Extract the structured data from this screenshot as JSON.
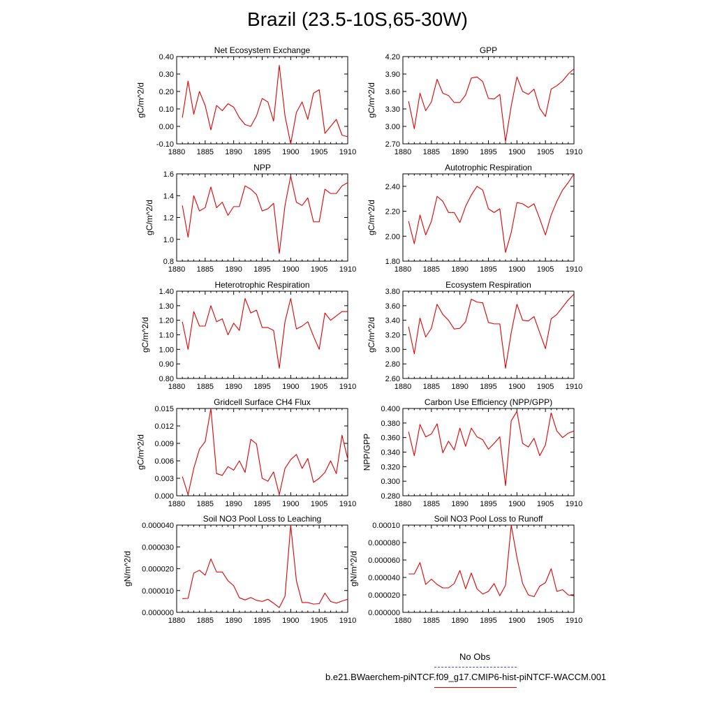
{
  "title": "Brazil (23.5-10S,65-30W)",
  "legend": {
    "obs_label": "No Obs",
    "obs_color": "#4b4bc8",
    "model_label": "b.e21.BWaerchem-piNTCF.f09_g17.CMIP6-hist-piNTCF-WACCM.001",
    "model_color": "#e00000"
  },
  "chart_data": [
    {
      "type": "line",
      "title": "Net Ecosystem Exchange",
      "ylabel": "gC/m^2/d",
      "xlim": [
        1880,
        1910
      ],
      "ylim": [
        -0.1,
        0.4
      ],
      "xticks": [
        1880,
        1885,
        1890,
        1895,
        1900,
        1905,
        1910
      ],
      "yticks": [
        "-0.10",
        "0.00",
        "0.10",
        "0.20",
        "0.30",
        "0.40"
      ],
      "x": [
        1881,
        1882,
        1883,
        1884,
        1885,
        1886,
        1887,
        1888,
        1889,
        1890,
        1891,
        1892,
        1893,
        1894,
        1895,
        1896,
        1897,
        1898,
        1899,
        1900,
        1901,
        1902,
        1903,
        1904,
        1905,
        1906,
        1907,
        1908,
        1909,
        1910
      ],
      "series": [
        {
          "values": [
            0.05,
            0.26,
            0.07,
            0.2,
            0.12,
            -0.02,
            0.12,
            0.09,
            0.13,
            0.11,
            0.05,
            0.01,
            0.0,
            0.06,
            0.16,
            0.14,
            0.03,
            0.35,
            0.06,
            -0.1,
            0.08,
            0.14,
            0.04,
            0.19,
            0.21,
            -0.04,
            0.0,
            0.04,
            -0.05,
            -0.06
          ]
        }
      ]
    },
    {
      "type": "line",
      "title": "GPP",
      "ylabel": "gC/m^2/d",
      "xlim": [
        1880,
        1910
      ],
      "ylim": [
        2.7,
        4.2
      ],
      "xticks": [
        1880,
        1885,
        1890,
        1895,
        1900,
        1905,
        1910
      ],
      "yticks": [
        "2.70",
        "3.00",
        "3.30",
        "3.60",
        "3.90",
        "4.20"
      ],
      "x": [
        1881,
        1882,
        1883,
        1884,
        1885,
        1886,
        1887,
        1888,
        1889,
        1890,
        1891,
        1892,
        1893,
        1894,
        1895,
        1896,
        1897,
        1898,
        1899,
        1900,
        1901,
        1902,
        1903,
        1904,
        1905,
        1906,
        1907,
        1908,
        1909,
        1910
      ],
      "series": [
        {
          "values": [
            3.43,
            2.96,
            3.57,
            3.27,
            3.42,
            3.81,
            3.57,
            3.53,
            3.41,
            3.41,
            3.54,
            3.83,
            3.85,
            3.77,
            3.48,
            3.47,
            3.55,
            2.74,
            3.35,
            3.85,
            3.6,
            3.55,
            3.64,
            3.31,
            3.17,
            3.64,
            3.7,
            3.78,
            3.9,
            3.99
          ]
        }
      ]
    },
    {
      "type": "line",
      "title": "NPP",
      "ylabel": "gC/m^2/d",
      "xlim": [
        1880,
        1910
      ],
      "ylim": [
        0.8,
        1.6
      ],
      "xticks": [
        1880,
        1885,
        1890,
        1895,
        1900,
        1905,
        1910
      ],
      "yticks": [
        "0.8",
        "1.0",
        "1.2",
        "1.4",
        "1.6"
      ],
      "x": [
        1881,
        1882,
        1883,
        1884,
        1885,
        1886,
        1887,
        1888,
        1889,
        1890,
        1891,
        1892,
        1893,
        1894,
        1895,
        1896,
        1897,
        1898,
        1899,
        1900,
        1901,
        1902,
        1903,
        1904,
        1905,
        1906,
        1907,
        1908,
        1909,
        1910
      ],
      "series": [
        {
          "values": [
            1.31,
            1.02,
            1.4,
            1.26,
            1.29,
            1.48,
            1.29,
            1.34,
            1.22,
            1.3,
            1.3,
            1.49,
            1.46,
            1.41,
            1.26,
            1.28,
            1.33,
            0.87,
            1.31,
            1.58,
            1.34,
            1.31,
            1.38,
            1.16,
            1.16,
            1.46,
            1.42,
            1.42,
            1.49,
            1.52
          ]
        }
      ]
    },
    {
      "type": "line",
      "title": "Autotrophic Respiration",
      "ylabel": "gC/m^2/d",
      "xlim": [
        1880,
        1910
      ],
      "ylim": [
        1.8,
        2.5
      ],
      "xticks": [
        1880,
        1885,
        1890,
        1895,
        1900,
        1905,
        1910
      ],
      "yticks": [
        "1.80",
        "2.00",
        "2.20",
        "2.40"
      ],
      "x": [
        1881,
        1882,
        1883,
        1884,
        1885,
        1886,
        1887,
        1888,
        1889,
        1890,
        1891,
        1892,
        1893,
        1894,
        1895,
        1896,
        1897,
        1898,
        1899,
        1900,
        1901,
        1902,
        1903,
        1904,
        1905,
        1906,
        1907,
        1908,
        1909,
        1910
      ],
      "series": [
        {
          "values": [
            2.12,
            1.94,
            2.17,
            2.01,
            2.12,
            2.32,
            2.28,
            2.19,
            2.19,
            2.11,
            2.24,
            2.33,
            2.4,
            2.37,
            2.22,
            2.19,
            2.22,
            1.87,
            2.03,
            2.27,
            2.26,
            2.23,
            2.26,
            2.14,
            2.01,
            2.17,
            2.28,
            2.37,
            2.43,
            2.5
          ]
        }
      ]
    },
    {
      "type": "line",
      "title": "Heterotrophic Respiration",
      "ylabel": "gC/m^2/d",
      "xlim": [
        1880,
        1910
      ],
      "ylim": [
        0.8,
        1.4
      ],
      "xticks": [
        1880,
        1885,
        1890,
        1895,
        1900,
        1905,
        1910
      ],
      "yticks": [
        "0.80",
        "0.90",
        "1.00",
        "1.10",
        "1.20",
        "1.30",
        "1.40"
      ],
      "x": [
        1881,
        1882,
        1883,
        1884,
        1885,
        1886,
        1887,
        1888,
        1889,
        1890,
        1891,
        1892,
        1893,
        1894,
        1895,
        1896,
        1897,
        1898,
        1899,
        1900,
        1901,
        1902,
        1903,
        1904,
        1905,
        1906,
        1907,
        1908,
        1909,
        1910
      ],
      "series": [
        {
          "values": [
            1.19,
            1.0,
            1.26,
            1.16,
            1.16,
            1.3,
            1.19,
            1.21,
            1.1,
            1.18,
            1.13,
            1.35,
            1.25,
            1.27,
            1.15,
            1.15,
            1.13,
            0.87,
            1.19,
            1.35,
            1.14,
            1.16,
            1.19,
            1.09,
            1.0,
            1.25,
            1.2,
            1.23,
            1.26,
            1.26
          ]
        }
      ]
    },
    {
      "type": "line",
      "title": "Ecosystem Respiration",
      "ylabel": "gC/m^2/d",
      "xlim": [
        1880,
        1910
      ],
      "ylim": [
        2.6,
        3.8
      ],
      "xticks": [
        1880,
        1885,
        1890,
        1895,
        1900,
        1905,
        1910
      ],
      "yticks": [
        "2.60",
        "2.80",
        "3.00",
        "3.20",
        "3.40",
        "3.60",
        "3.80"
      ],
      "x": [
        1881,
        1882,
        1883,
        1884,
        1885,
        1886,
        1887,
        1888,
        1889,
        1890,
        1891,
        1892,
        1893,
        1894,
        1895,
        1896,
        1897,
        1898,
        1899,
        1900,
        1901,
        1902,
        1903,
        1904,
        1905,
        1906,
        1907,
        1908,
        1909,
        1910
      ],
      "series": [
        {
          "values": [
            3.31,
            2.94,
            3.43,
            3.17,
            3.29,
            3.62,
            3.48,
            3.4,
            3.28,
            3.29,
            3.38,
            3.69,
            3.65,
            3.64,
            3.37,
            3.35,
            3.35,
            2.74,
            3.23,
            3.62,
            3.4,
            3.39,
            3.45,
            3.23,
            3.01,
            3.42,
            3.48,
            3.58,
            3.68,
            3.76
          ]
        }
      ]
    },
    {
      "type": "line",
      "title": "Gridcell Surface CH4 Flux",
      "ylabel": "gC/m^2/d",
      "xlim": [
        1880,
        1910
      ],
      "ylim": [
        0.0,
        0.015
      ],
      "xticks": [
        1880,
        1885,
        1890,
        1895,
        1900,
        1905,
        1910
      ],
      "yticks": [
        "0.000",
        "0.003",
        "0.006",
        "0.009",
        "0.012",
        "0.015"
      ],
      "x": [
        1881,
        1882,
        1883,
        1884,
        1885,
        1886,
        1887,
        1888,
        1889,
        1890,
        1891,
        1892,
        1893,
        1894,
        1895,
        1896,
        1897,
        1898,
        1899,
        1900,
        1901,
        1902,
        1903,
        1904,
        1905,
        1906,
        1907,
        1908,
        1909,
        1910
      ],
      "series": [
        {
          "values": [
            0.0033,
            0.0002,
            0.0047,
            0.008,
            0.0093,
            0.015,
            0.0038,
            0.0035,
            0.005,
            0.0044,
            0.006,
            0.004,
            0.0097,
            0.0089,
            0.003,
            0.0025,
            0.0041,
            0.0002,
            0.0047,
            0.0062,
            0.0071,
            0.0047,
            0.0064,
            0.0023,
            0.003,
            0.004,
            0.006,
            0.0038,
            0.0104,
            0.0063
          ]
        }
      ]
    },
    {
      "type": "line",
      "title": "Carbon Use Efficiency (NPP/GPP)",
      "ylabel": "NPP/GPP",
      "xlim": [
        1880,
        1910
      ],
      "ylim": [
        0.28,
        0.4
      ],
      "xticks": [
        1880,
        1885,
        1890,
        1895,
        1900,
        1905,
        1910
      ],
      "yticks": [
        "0.280",
        "0.300",
        "0.320",
        "0.340",
        "0.360",
        "0.380",
        "0.400"
      ],
      "x": [
        1881,
        1882,
        1883,
        1884,
        1885,
        1886,
        1887,
        1888,
        1889,
        1890,
        1891,
        1892,
        1893,
        1894,
        1895,
        1896,
        1897,
        1898,
        1899,
        1900,
        1901,
        1902,
        1903,
        1904,
        1905,
        1906,
        1907,
        1908,
        1909,
        1910
      ],
      "series": [
        {
          "values": [
            0.368,
            0.335,
            0.378,
            0.361,
            0.365,
            0.379,
            0.339,
            0.355,
            0.343,
            0.373,
            0.348,
            0.373,
            0.361,
            0.357,
            0.344,
            0.352,
            0.361,
            0.294,
            0.383,
            0.396,
            0.352,
            0.347,
            0.359,
            0.335,
            0.35,
            0.394,
            0.369,
            0.36,
            0.366,
            0.369
          ]
        }
      ]
    },
    {
      "type": "line",
      "title": "Soil NO3 Pool Loss to Leaching",
      "ylabel": "gN/m^2/d",
      "xlim": [
        1880,
        1910
      ],
      "ylim": [
        0.0,
        4e-05
      ],
      "xticks": [
        1880,
        1885,
        1890,
        1895,
        1900,
        1905,
        1910
      ],
      "yticks": [
        "0.000000",
        "0.000010",
        "0.000020",
        "0.000030",
        "0.000040"
      ],
      "x": [
        1881,
        1882,
        1883,
        1884,
        1885,
        1886,
        1887,
        1888,
        1889,
        1890,
        1891,
        1892,
        1893,
        1894,
        1895,
        1896,
        1897,
        1898,
        1899,
        1900,
        1901,
        1902,
        1903,
        1904,
        1905,
        1906,
        1907,
        1908,
        1909,
        1910
      ],
      "series": [
        {
          "values": [
            6.3e-06,
            6.4e-06,
            1.8e-05,
            1.93e-05,
            1.7e-05,
            2.45e-05,
            1.85e-05,
            1.85e-05,
            1.45e-05,
            1.22e-05,
            6.7e-06,
            5.7e-06,
            6.8e-06,
            5.5e-06,
            5e-06,
            6e-06,
            4.2e-06,
            2.2e-06,
            7.4e-06,
            4e-05,
            1.45e-05,
            4.5e-06,
            4.5e-06,
            3.8e-06,
            4e-06,
            8.8e-06,
            5e-06,
            4.2e-06,
            5.2e-06,
            6e-06
          ]
        }
      ]
    },
    {
      "type": "line",
      "title": "Soil NO3 Pool Loss to Runoff",
      "ylabel": "gN/m^2/d",
      "xlim": [
        1880,
        1910
      ],
      "ylim": [
        0.0,
        0.0001
      ],
      "xticks": [
        1880,
        1885,
        1890,
        1895,
        1900,
        1905,
        1910
      ],
      "yticks": [
        "0.000000",
        "0.000020",
        "0.000040",
        "0.000060",
        "0.000080",
        "0.00010"
      ],
      "x": [
        1881,
        1882,
        1883,
        1884,
        1885,
        1886,
        1887,
        1888,
        1889,
        1890,
        1891,
        1892,
        1893,
        1894,
        1895,
        1896,
        1897,
        1898,
        1899,
        1900,
        1901,
        1902,
        1903,
        1904,
        1905,
        1906,
        1907,
        1908,
        1909,
        1910
      ],
      "series": [
        {
          "values": [
            4.4e-05,
            4.4e-05,
            5.7e-05,
            3.2e-05,
            3.8e-05,
            3.2e-05,
            2.8e-05,
            2.8e-05,
            3.3e-05,
            4.8e-05,
            2.7e-05,
            4.5e-05,
            2.7e-05,
            2.1e-05,
            2.4e-05,
            3.3e-05,
            1.9e-05,
            3.1e-05,
            0.0001,
            6.3e-05,
            3.3e-05,
            2e-05,
            1.8e-05,
            3e-05,
            3.4e-05,
            5e-05,
            2.4e-05,
            2.6e-05,
            2e-05,
            1.9e-05
          ]
        }
      ]
    }
  ]
}
